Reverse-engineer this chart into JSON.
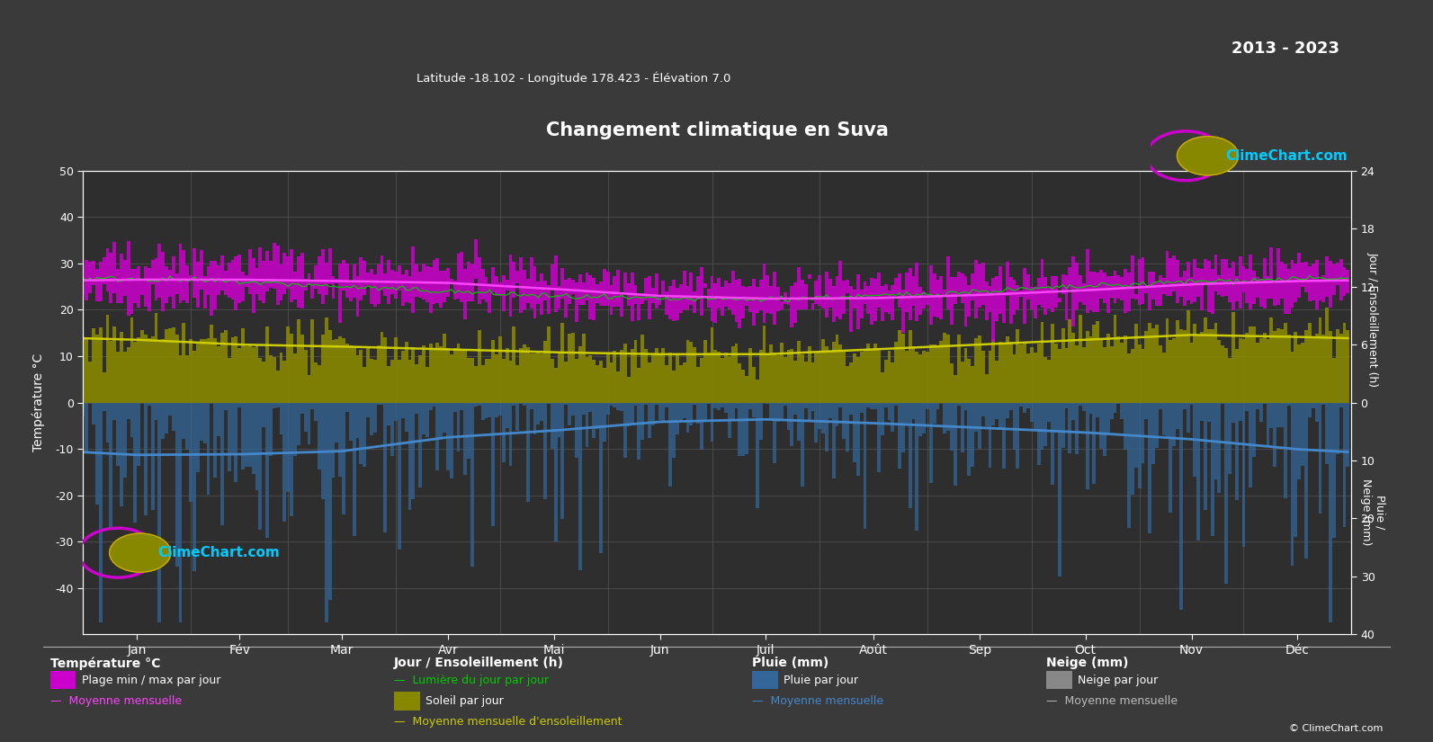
{
  "title": "Changement climatique en Suva",
  "subtitle": "Latitude -18.102 - Longitude 178.423 - Élévation 7.0",
  "year_range": "2013 - 2023",
  "background_color": "#3a3a3a",
  "plot_bg_color": "#2e2e2e",
  "grid_color": "#555555",
  "text_color": "#ffffff",
  "months": [
    "Jan",
    "Fév",
    "Mar",
    "Avr",
    "Mai",
    "Jun",
    "Juil",
    "Août",
    "Sep",
    "Oct",
    "Nov",
    "Déc"
  ],
  "months_days": [
    31,
    28,
    31,
    30,
    31,
    30,
    31,
    31,
    30,
    31,
    30,
    31
  ],
  "temp_ylim": [
    -50,
    50
  ],
  "temp_min_monthly": [
    22.5,
    22.8,
    22.5,
    22.0,
    21.0,
    19.5,
    19.0,
    19.0,
    19.5,
    20.5,
    21.5,
    22.0
  ],
  "temp_max_monthly": [
    30.5,
    30.5,
    30.0,
    29.5,
    28.0,
    26.5,
    25.8,
    26.0,
    27.0,
    28.0,
    29.5,
    30.0
  ],
  "temp_mean_monthly": [
    26.5,
    26.5,
    26.2,
    25.8,
    24.5,
    23.0,
    22.4,
    22.5,
    23.2,
    24.2,
    25.5,
    26.2
  ],
  "daylight_monthly": [
    12.8,
    12.5,
    12.0,
    11.5,
    11.0,
    10.7,
    10.7,
    11.0,
    11.5,
    12.0,
    12.5,
    12.8
  ],
  "sunshine_daily_monthly": [
    6.5,
    6.0,
    5.8,
    5.5,
    5.2,
    5.0,
    5.0,
    5.5,
    6.0,
    6.5,
    7.0,
    6.8
  ],
  "sunshine_mean_monthly": [
    6.5,
    6.0,
    5.8,
    5.5,
    5.2,
    5.0,
    5.0,
    5.5,
    6.0,
    6.5,
    7.0,
    6.8
  ],
  "rain_monthly_mm": [
    280,
    250,
    260,
    180,
    150,
    100,
    90,
    110,
    130,
    160,
    190,
    250
  ],
  "snow_monthly_mm": [
    0,
    0,
    0,
    0,
    0,
    0,
    0,
    0,
    0,
    0,
    0,
    0
  ],
  "sun_scale": 2.0833,
  "rain_scale": 1.25,
  "colors": {
    "temp_range": "#cc00cc",
    "temp_mean": "#ff44ff",
    "daylight": "#00cc00",
    "sunshine_fill": "#888800",
    "sunshine_mean": "#cccc00",
    "rain_bar": "#336699",
    "rain_mean": "#4488cc",
    "snow_bar": "#888888",
    "snow_mean": "#bbbbbb",
    "logo_circle": "#cc00cc",
    "logo_inner": "#ccaa00",
    "logo_text": "#00ccff"
  }
}
